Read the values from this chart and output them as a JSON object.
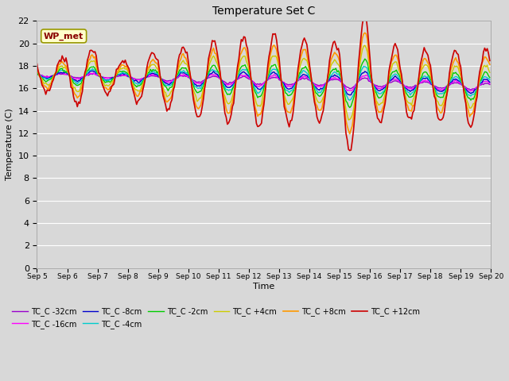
{
  "title": "Temperature Set C",
  "xlabel": "Time",
  "ylabel": "Temperature (C)",
  "ylim": [
    0,
    22
  ],
  "yticks": [
    0,
    2,
    4,
    6,
    8,
    10,
    12,
    14,
    16,
    18,
    20,
    22
  ],
  "legend_label": "WP_met",
  "fig_bg": "#d8d8d8",
  "plot_bg": "#d8d8d8",
  "grid_color": "#ffffff",
  "series_order": [
    "TC_C -32cm",
    "TC_C -16cm",
    "TC_C -8cm",
    "TC_C -4cm",
    "TC_C -2cm",
    "TC_C +4cm",
    "TC_C +8cm",
    "TC_C +12cm"
  ],
  "series_colors": [
    "#9900cc",
    "#ff00ff",
    "#0000cc",
    "#00cccc",
    "#00cc00",
    "#cccc00",
    "#ff9900",
    "#cc0000"
  ],
  "series_lw": [
    1.0,
    1.0,
    1.0,
    1.0,
    1.0,
    1.0,
    1.2,
    1.2
  ]
}
